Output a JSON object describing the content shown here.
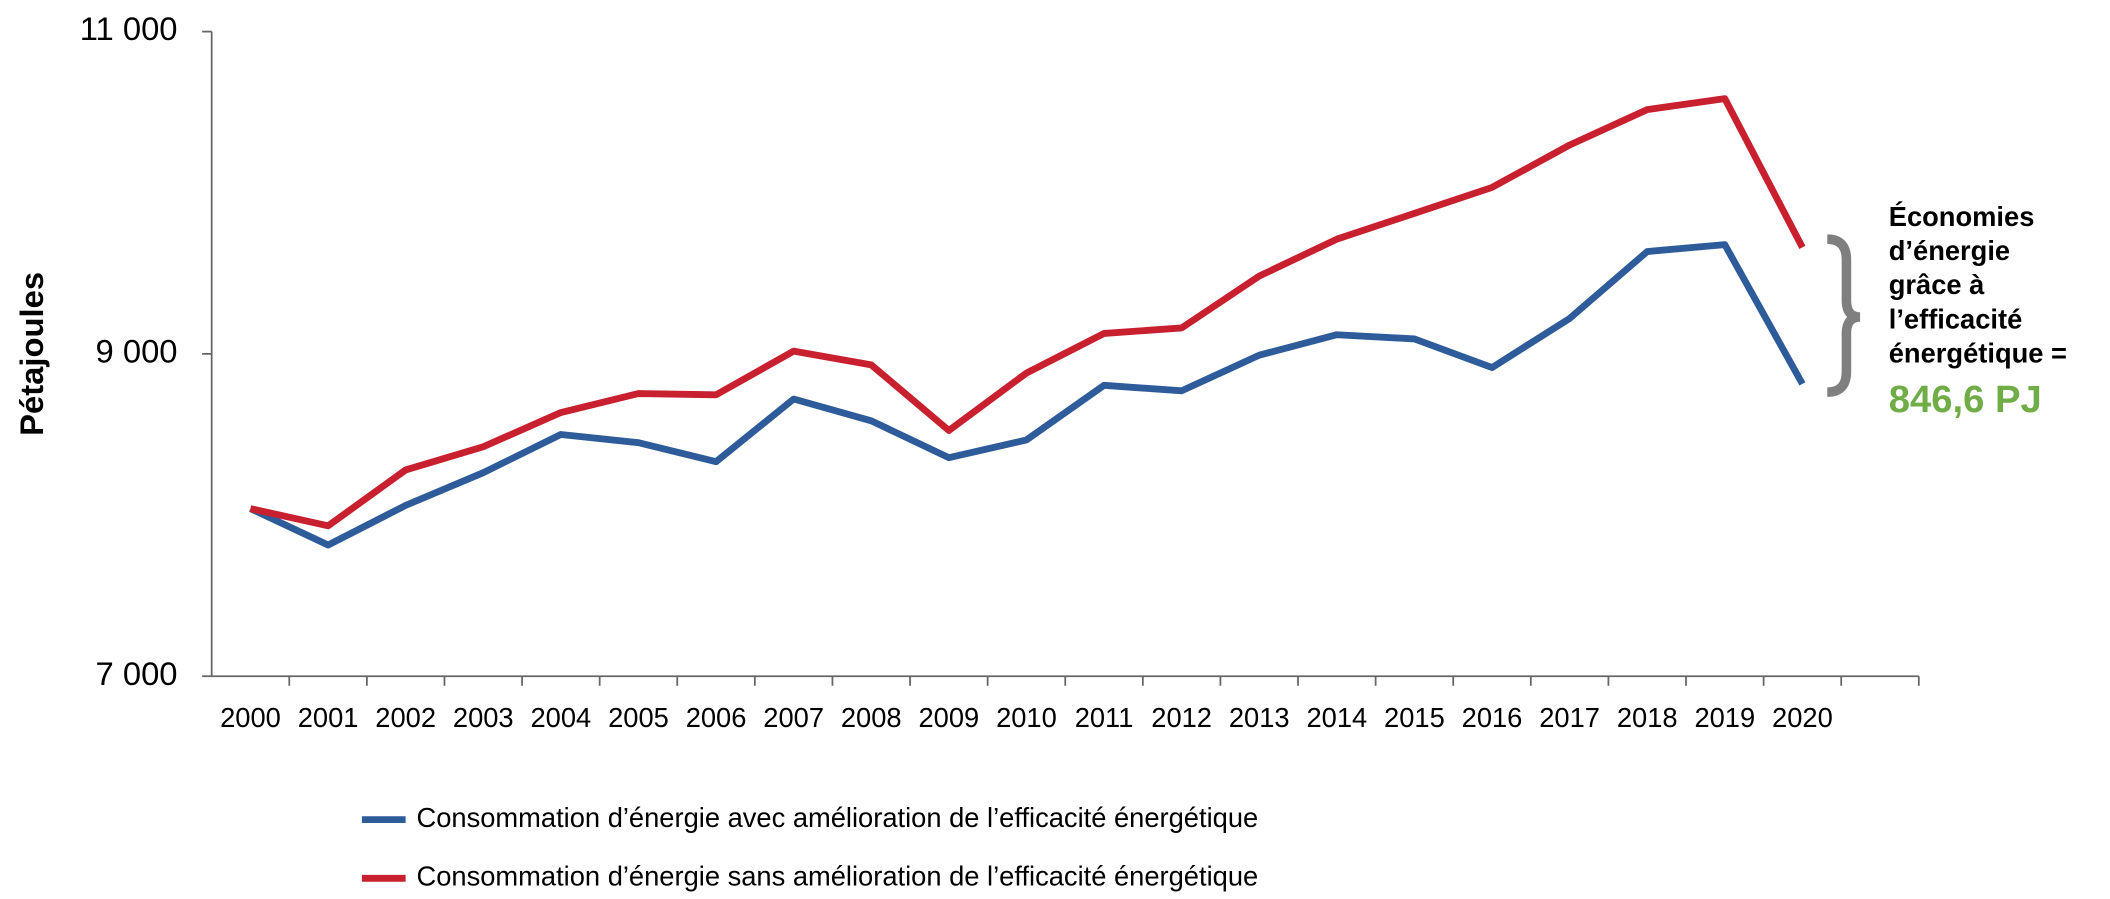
{
  "chart_data": {
    "type": "line",
    "y_label": "Pétajoules",
    "categories": [
      "2000",
      "2001",
      "2002",
      "2003",
      "2004",
      "2005",
      "2006",
      "2007",
      "2008",
      "2009",
      "2010",
      "2011",
      "2012",
      "2013",
      "2014",
      "2015",
      "2016",
      "2017",
      "2018",
      "2019",
      "2020",
      null
    ],
    "series": [
      {
        "name": "Consommation d’énergie avec amélioration de l’efficacité énergétique",
        "color": "#2e5b9a",
        "values": [
          8040,
          7814,
          8060,
          8263,
          8500,
          8449,
          8331,
          8720,
          8585,
          8356,
          8466,
          8805,
          8771,
          8992,
          9119,
          9093,
          8915,
          9220,
          9635,
          9678,
          8814,
          null
        ]
      },
      {
        "name": "Consommation d’énergie sans amélioration de l’efficacité énergétique",
        "color": "#c8202f",
        "values": [
          8040,
          7933,
          8280,
          8424,
          8636,
          8754,
          8746,
          9017,
          8932,
          8525,
          8881,
          9127,
          9161,
          9483,
          9712,
          9872,
          10033,
          10296,
          10516,
          10584,
          9661,
          null
        ]
      }
    ],
    "ylim": [
      7000,
      11000
    ],
    "yticks": [
      {
        "value": 7000,
        "label": "7 000"
      },
      {
        "value": 9000,
        "label": "9 000"
      },
      {
        "value": 11000,
        "label": "11 000"
      }
    ],
    "annotation": {
      "lines": [
        "Économies",
        "d’énergie",
        "grâce à",
        "l’efficacité",
        "énergétique ="
      ],
      "value": "846,6 PJ",
      "value_color": "#70ad47"
    }
  }
}
